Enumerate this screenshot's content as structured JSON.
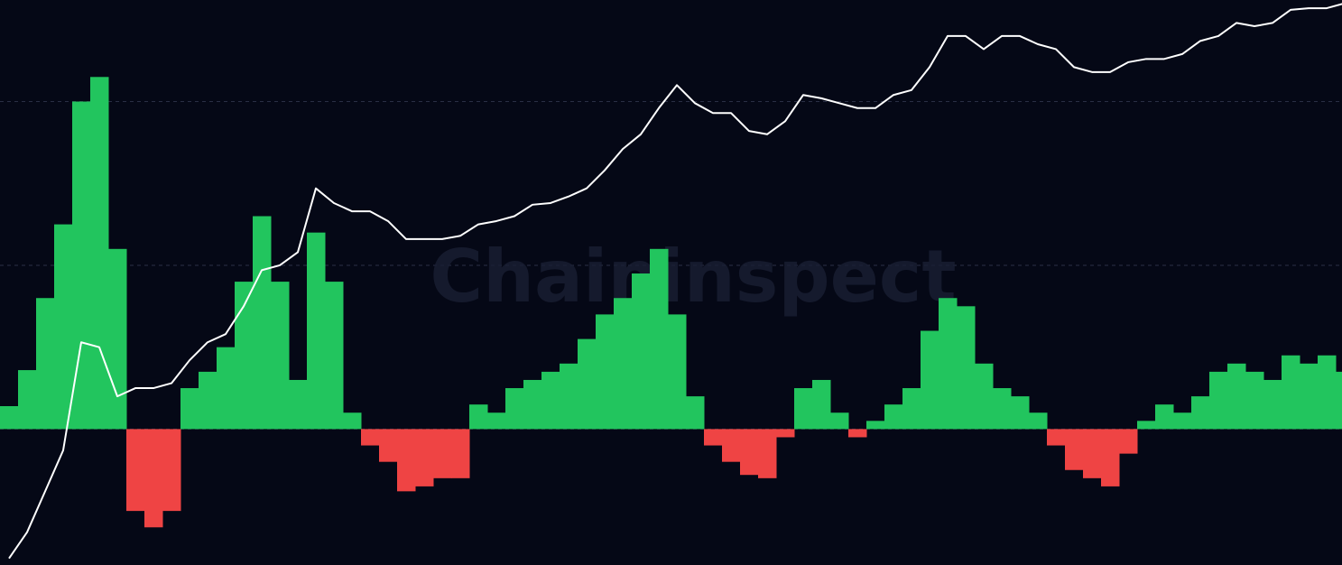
{
  "chart_data": {
    "type": "bar",
    "watermark": "Chaininspect",
    "x": [
      0,
      20,
      40,
      60,
      80,
      100,
      120,
      140,
      160,
      180,
      200,
      220,
      240,
      260,
      280,
      300,
      320,
      340,
      360,
      380,
      400,
      420,
      440,
      460,
      480,
      500,
      520,
      540,
      560,
      580,
      600,
      620,
      640,
      660,
      680,
      700,
      720,
      740,
      760,
      780,
      800,
      820,
      840,
      860,
      880,
      900,
      920,
      940,
      960,
      980,
      1000,
      1020,
      1040,
      1060,
      1080,
      1100,
      1120,
      1140,
      1160,
      1180,
      1200,
      1220,
      1240,
      1260,
      1280,
      1300,
      1320,
      1340,
      1360,
      1380,
      1400,
      1420,
      1440,
      1460,
      1480
    ],
    "xlim": [
      0,
      1487
    ],
    "ylim": [
      -0.83,
      2.62
    ],
    "yticks": [
      0,
      1,
      2
    ],
    "y2lim": [
      -0.83,
      2.62
    ],
    "grid": true,
    "background": "#050816",
    "series": [
      {
        "type": "bar",
        "positive_color": "#22c55e",
        "negative_color": "#ef4444",
        "values": [
          0.14,
          0.36,
          0.8,
          1.25,
          2.0,
          2.15,
          1.1,
          -0.5,
          -0.6,
          -0.5,
          0.25,
          0.35,
          0.5,
          0.9,
          1.3,
          0.9,
          0.3,
          1.2,
          0.9,
          0.1,
          -0.1,
          -0.2,
          -0.38,
          -0.35,
          -0.3,
          -0.3,
          0.15,
          0.1,
          0.25,
          0.3,
          0.35,
          0.4,
          0.55,
          0.7,
          0.8,
          0.95,
          1.1,
          0.7,
          0.2,
          -0.1,
          -0.2,
          -0.28,
          -0.3,
          -0.05,
          0.25,
          0.3,
          0.1,
          -0.05,
          0.05,
          0.15,
          0.25,
          0.6,
          0.8,
          0.75,
          0.4,
          0.25,
          0.2,
          0.1,
          -0.1,
          -0.25,
          -0.3,
          -0.35,
          -0.15,
          0.05,
          0.15,
          0.1,
          0.2,
          0.35,
          0.4,
          0.35,
          0.3,
          0.45,
          0.4,
          0.45,
          0.35
        ]
      },
      {
        "type": "line",
        "axis": "y2",
        "color": "#ffffff",
        "values": [
          -0.79,
          -0.63,
          -0.38,
          -0.13,
          0.53,
          0.5,
          0.2,
          0.25,
          0.25,
          0.28,
          0.42,
          0.53,
          0.58,
          0.75,
          0.97,
          1.0,
          1.08,
          1.47,
          1.38,
          1.33,
          1.33,
          1.27,
          1.16,
          1.16,
          1.16,
          1.18,
          1.25,
          1.27,
          1.3,
          1.37,
          1.38,
          1.42,
          1.47,
          1.58,
          1.71,
          1.8,
          1.96,
          2.1,
          1.99,
          1.93,
          1.93,
          1.82,
          1.8,
          1.88,
          2.04,
          2.02,
          1.99,
          1.96,
          1.96,
          2.04,
          2.07,
          2.21,
          2.4,
          2.4,
          2.32,
          2.4,
          2.4,
          2.35,
          2.32,
          2.21,
          2.18,
          2.18,
          2.24,
          2.26,
          2.26,
          2.29,
          2.37,
          2.4,
          2.48,
          2.46,
          2.48,
          2.56,
          2.57,
          2.57,
          2.6
        ]
      }
    ]
  }
}
